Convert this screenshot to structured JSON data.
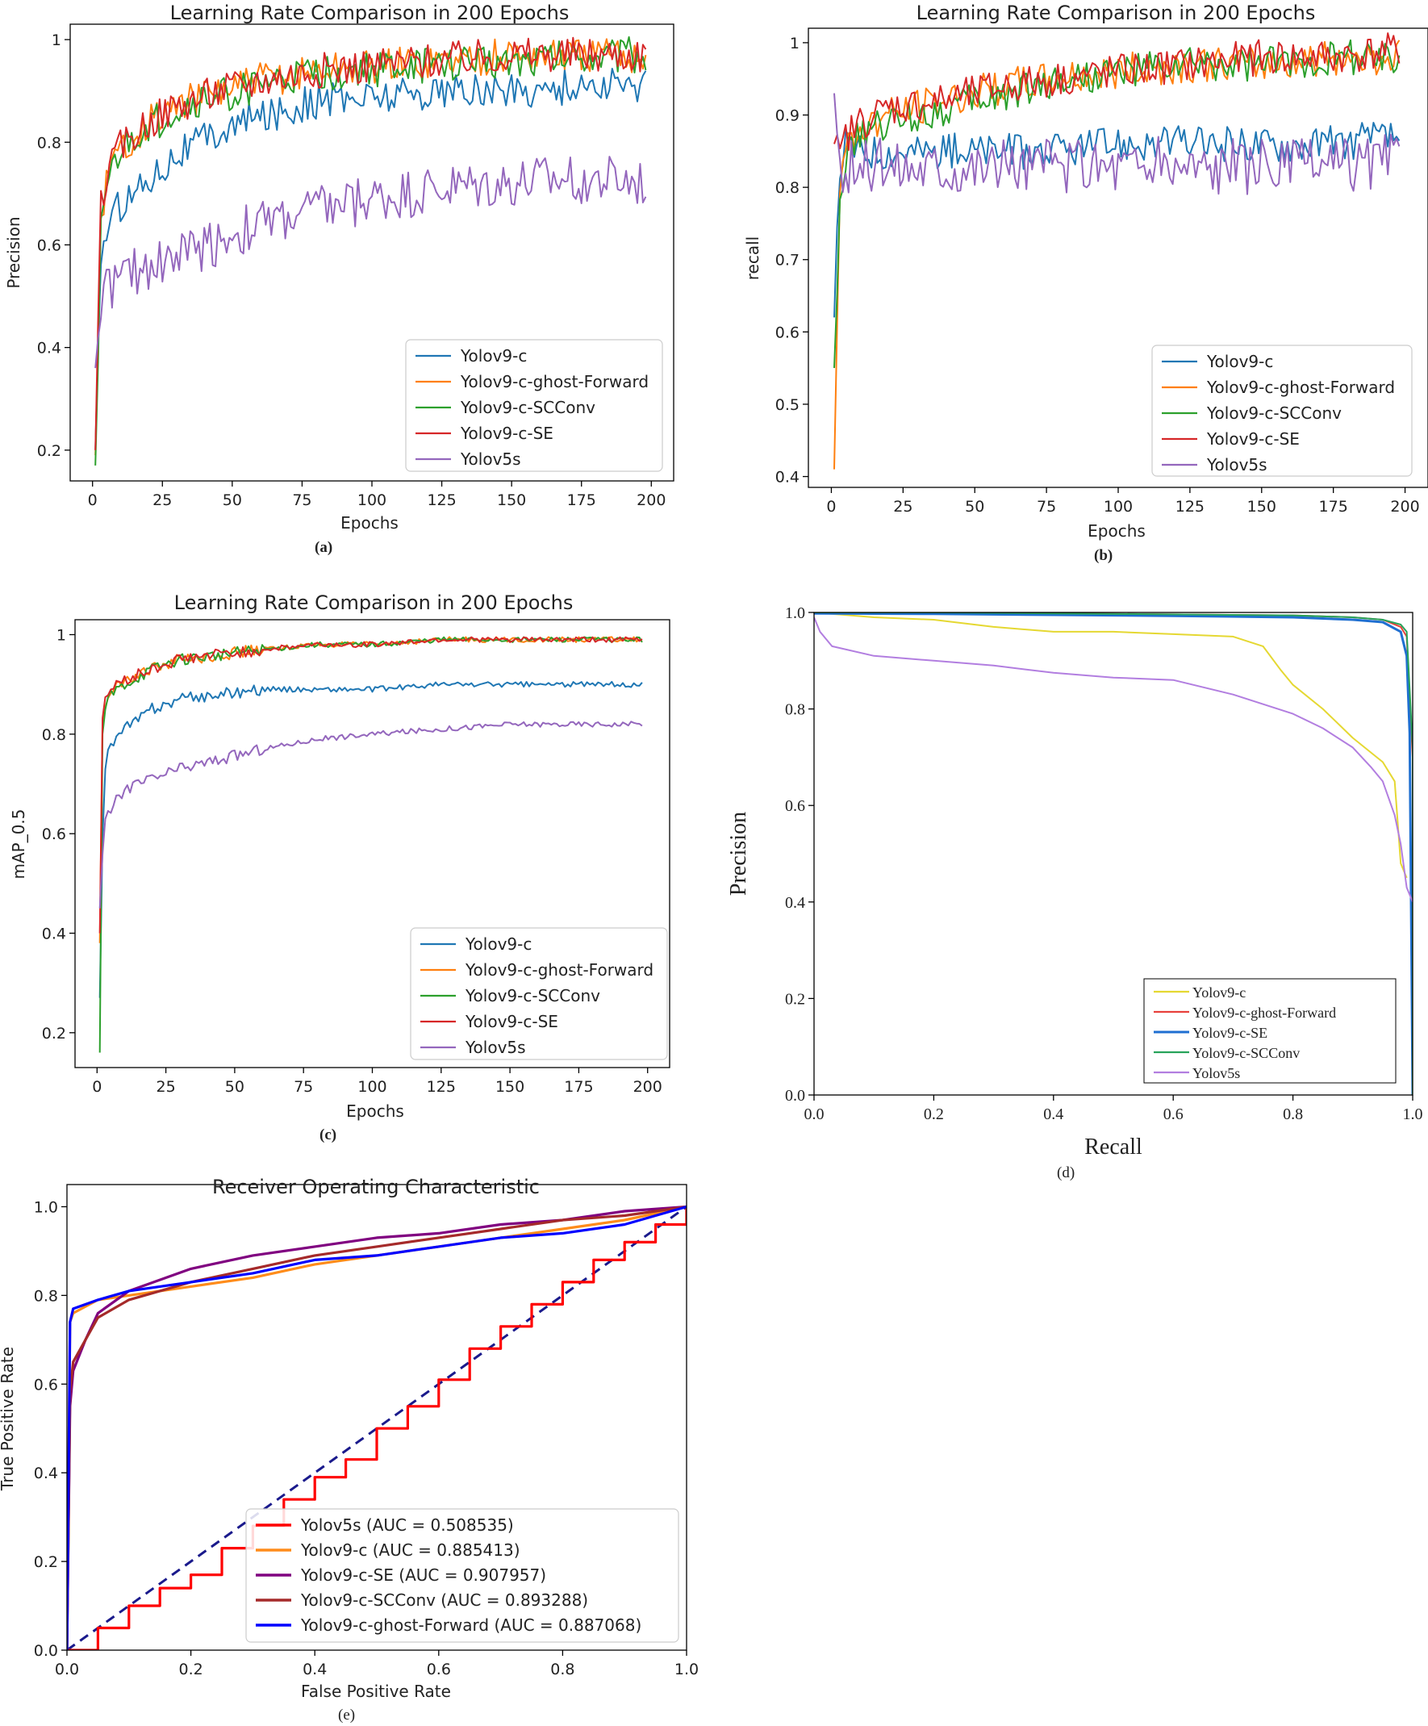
{
  "labels": {
    "a": "(a)",
    "b": "(b)",
    "c": "(c)",
    "d": "(d)",
    "e": "(e)"
  },
  "colors": {
    "yolov9c": "#1f77b4",
    "ghost": "#ff7f0e",
    "scconv": "#2ca02c",
    "se": "#d62728",
    "yolov5s": "#9467bd",
    "pr_yolov9c": "#e5d832",
    "pr_ghost": "#e8413c",
    "pr_se": "#1f6fd1",
    "pr_scconv": "#27a35a",
    "pr_yolov5s": "#b27ee0",
    "roc_yolov5s": "#ff0000",
    "roc_yolov9c": "#ff8c1a",
    "roc_se": "#800080",
    "roc_scconv": "#a52a2a",
    "roc_ghost": "#0000ff",
    "roc_diag": "#1a1a8c"
  },
  "chart_data": [
    {
      "id": "a",
      "type": "line",
      "title": "Learning Rate Comparison in 200 Epochs",
      "xlabel": "Epochs",
      "ylabel": "Precision",
      "xlim": [
        -8,
        208
      ],
      "ylim": [
        0.14,
        1.03
      ],
      "xticks": [
        0,
        25,
        50,
        75,
        100,
        125,
        150,
        175,
        200
      ],
      "yticks": [
        0.2,
        0.4,
        0.6,
        0.8,
        1.0
      ],
      "legend_position": "bottom-right",
      "series": [
        {
          "name": "Yolov9-c",
          "color_key": "yolov9c",
          "x": [
            1,
            3,
            5,
            10,
            20,
            30,
            45,
            60,
            80,
            100,
            125,
            150,
            175,
            198
          ],
          "y": [
            0.2,
            0.58,
            0.63,
            0.68,
            0.73,
            0.78,
            0.82,
            0.85,
            0.88,
            0.89,
            0.9,
            0.9,
            0.91,
            0.91
          ]
        },
        {
          "name": "Yolov9-c-ghost-Forward",
          "color_key": "ghost",
          "x": [
            1,
            3,
            5,
            10,
            20,
            30,
            45,
            60,
            80,
            100,
            125,
            150,
            175,
            198
          ],
          "y": [
            0.19,
            0.66,
            0.72,
            0.79,
            0.84,
            0.87,
            0.9,
            0.92,
            0.94,
            0.95,
            0.96,
            0.97,
            0.97,
            0.97
          ]
        },
        {
          "name": "Yolov9-c-SCConv",
          "color_key": "scconv",
          "x": [
            1,
            3,
            5,
            10,
            20,
            30,
            45,
            60,
            80,
            100,
            125,
            150,
            175,
            198
          ],
          "y": [
            0.17,
            0.64,
            0.71,
            0.78,
            0.83,
            0.86,
            0.89,
            0.91,
            0.93,
            0.94,
            0.95,
            0.96,
            0.97,
            0.97
          ]
        },
        {
          "name": "Yolov9-c-SE",
          "color_key": "se",
          "x": [
            1,
            3,
            5,
            10,
            20,
            30,
            45,
            60,
            80,
            100,
            125,
            150,
            175,
            198
          ],
          "y": [
            0.2,
            0.68,
            0.73,
            0.79,
            0.84,
            0.87,
            0.9,
            0.92,
            0.94,
            0.95,
            0.96,
            0.97,
            0.97,
            0.97
          ]
        },
        {
          "name": "Yolov5s",
          "color_key": "yolov5s",
          "x": [
            1,
            3,
            5,
            10,
            20,
            30,
            45,
            60,
            80,
            100,
            125,
            150,
            175,
            198
          ],
          "y": [
            0.36,
            0.5,
            0.52,
            0.53,
            0.56,
            0.58,
            0.61,
            0.64,
            0.67,
            0.69,
            0.71,
            0.72,
            0.73,
            0.72
          ]
        }
      ]
    },
    {
      "id": "b",
      "type": "line",
      "title": "Learning Rate Comparison in 200 Epochs",
      "xlabel": "Epochs",
      "ylabel": "recall",
      "xlim": [
        -8,
        208
      ],
      "ylim": [
        0.385,
        1.02
      ],
      "xticks": [
        0,
        25,
        50,
        75,
        100,
        125,
        150,
        175,
        200
      ],
      "yticks": [
        0.4,
        0.5,
        0.6,
        0.7,
        0.8,
        0.9,
        1.0
      ],
      "legend_position": "bottom-right",
      "series": [
        {
          "name": "Yolov9-c",
          "color_key": "yolov9c",
          "x": [
            1,
            3,
            5,
            10,
            20,
            40,
            60,
            80,
            100,
            125,
            150,
            175,
            198
          ],
          "y": [
            0.62,
            0.83,
            0.86,
            0.85,
            0.85,
            0.85,
            0.85,
            0.85,
            0.86,
            0.86,
            0.86,
            0.86,
            0.87
          ]
        },
        {
          "name": "Yolov9-c-ghost-Forward",
          "color_key": "ghost",
          "x": [
            1,
            3,
            5,
            10,
            20,
            40,
            60,
            80,
            100,
            125,
            150,
            175,
            198
          ],
          "y": [
            0.41,
            0.8,
            0.85,
            0.88,
            0.9,
            0.92,
            0.94,
            0.95,
            0.96,
            0.97,
            0.97,
            0.98,
            0.98
          ]
        },
        {
          "name": "Yolov9-c-SCConv",
          "color_key": "scconv",
          "x": [
            1,
            3,
            5,
            10,
            20,
            40,
            60,
            80,
            100,
            125,
            150,
            175,
            198
          ],
          "y": [
            0.55,
            0.78,
            0.84,
            0.87,
            0.89,
            0.91,
            0.93,
            0.95,
            0.96,
            0.97,
            0.97,
            0.98,
            0.98
          ]
        },
        {
          "name": "Yolov9-c-SE",
          "color_key": "se",
          "x": [
            1,
            3,
            5,
            10,
            20,
            40,
            60,
            80,
            100,
            125,
            150,
            175,
            198
          ],
          "y": [
            0.86,
            0.84,
            0.87,
            0.89,
            0.91,
            0.92,
            0.94,
            0.95,
            0.96,
            0.97,
            0.98,
            0.98,
            0.99
          ]
        },
        {
          "name": "Yolov5s",
          "color_key": "yolov5s",
          "x": [
            1,
            3,
            5,
            10,
            20,
            40,
            60,
            80,
            100,
            125,
            150,
            175,
            198
          ],
          "y": [
            0.93,
            0.8,
            0.82,
            0.83,
            0.83,
            0.83,
            0.83,
            0.83,
            0.83,
            0.83,
            0.83,
            0.83,
            0.84
          ]
        }
      ]
    },
    {
      "id": "c",
      "type": "line",
      "title": "Learning Rate Comparison in 200 Epochs",
      "xlabel": "Epochs",
      "ylabel": "mAP_0.5",
      "xlim": [
        -8,
        208
      ],
      "ylim": [
        0.13,
        1.03
      ],
      "xticks": [
        0,
        25,
        50,
        75,
        100,
        125,
        150,
        175,
        200
      ],
      "yticks": [
        0.2,
        0.4,
        0.6,
        0.8,
        1.0
      ],
      "legend_position": "bottom-right",
      "series": [
        {
          "name": "Yolov9-c",
          "color_key": "yolov9c",
          "x": [
            1,
            2,
            3,
            5,
            10,
            20,
            30,
            45,
            60,
            80,
            100,
            125,
            150,
            175,
            198
          ],
          "y": [
            0.27,
            0.6,
            0.74,
            0.78,
            0.81,
            0.85,
            0.87,
            0.88,
            0.89,
            0.89,
            0.89,
            0.9,
            0.9,
            0.9,
            0.9
          ]
        },
        {
          "name": "Yolov9-c-ghost-Forward",
          "color_key": "ghost",
          "x": [
            1,
            2,
            3,
            5,
            10,
            20,
            30,
            45,
            60,
            80,
            100,
            125,
            150,
            175,
            198
          ],
          "y": [
            0.38,
            0.82,
            0.86,
            0.89,
            0.91,
            0.93,
            0.95,
            0.96,
            0.97,
            0.98,
            0.98,
            0.99,
            0.99,
            0.99,
            0.99
          ]
        },
        {
          "name": "Yolov9-c-SCConv",
          "color_key": "scconv",
          "x": [
            1,
            2,
            3,
            5,
            10,
            20,
            30,
            45,
            60,
            80,
            100,
            125,
            150,
            175,
            198
          ],
          "y": [
            0.16,
            0.8,
            0.85,
            0.88,
            0.9,
            0.93,
            0.95,
            0.96,
            0.97,
            0.98,
            0.98,
            0.99,
            0.99,
            0.99,
            0.99
          ]
        },
        {
          "name": "Yolov9-c-SE",
          "color_key": "se",
          "x": [
            1,
            2,
            3,
            5,
            10,
            20,
            30,
            45,
            60,
            80,
            100,
            125,
            150,
            175,
            198
          ],
          "y": [
            0.4,
            0.84,
            0.87,
            0.89,
            0.91,
            0.93,
            0.95,
            0.96,
            0.97,
            0.98,
            0.98,
            0.99,
            0.99,
            0.99,
            0.99
          ]
        },
        {
          "name": "Yolov5s",
          "color_key": "yolov5s",
          "x": [
            1,
            2,
            3,
            5,
            10,
            20,
            30,
            45,
            60,
            80,
            100,
            125,
            150,
            175,
            198
          ],
          "y": [
            0.45,
            0.55,
            0.62,
            0.65,
            0.69,
            0.71,
            0.73,
            0.75,
            0.77,
            0.79,
            0.8,
            0.81,
            0.82,
            0.82,
            0.82
          ]
        }
      ]
    },
    {
      "id": "d",
      "type": "line",
      "title": "",
      "xlabel": "Recall",
      "ylabel": "Precision",
      "xlim": [
        0,
        1
      ],
      "ylim": [
        0,
        1
      ],
      "xticks": [
        0.0,
        0.2,
        0.4,
        0.6,
        0.8,
        1.0
      ],
      "yticks": [
        0.0,
        0.2,
        0.4,
        0.6,
        0.8,
        1.0
      ],
      "tick_format": "%.1f",
      "legend_position": "bottom-right",
      "series": [
        {
          "name": "Yolov9-c",
          "color_key": "pr_yolov9c",
          "x": [
            0.0,
            0.1,
            0.2,
            0.3,
            0.4,
            0.5,
            0.6,
            0.7,
            0.75,
            0.78,
            0.8,
            0.85,
            0.9,
            0.95,
            0.97,
            0.98,
            0.99
          ],
          "y": [
            1.0,
            0.99,
            0.985,
            0.97,
            0.96,
            0.96,
            0.955,
            0.95,
            0.93,
            0.88,
            0.85,
            0.8,
            0.74,
            0.69,
            0.65,
            0.48,
            0.45
          ]
        },
        {
          "name": "Yolov9-c-ghost-Forward",
          "color_key": "pr_ghost",
          "x": [
            0.0,
            0.2,
            0.4,
            0.6,
            0.8,
            0.9,
            0.95,
            0.98,
            0.99,
            1.0,
            1.0
          ],
          "y": [
            1.0,
            1.0,
            0.998,
            0.996,
            0.994,
            0.99,
            0.985,
            0.97,
            0.95,
            0.7,
            0.0
          ]
        },
        {
          "name": "Yolov9-c-SE",
          "color_key": "pr_se",
          "x": [
            0.0,
            0.2,
            0.4,
            0.6,
            0.8,
            0.9,
            0.95,
            0.98,
            0.99,
            0.995,
            1.0
          ],
          "y": [
            0.998,
            0.997,
            0.995,
            0.993,
            0.99,
            0.985,
            0.98,
            0.96,
            0.91,
            0.75,
            0.0
          ]
        },
        {
          "name": "Yolov9-c-SCConv",
          "color_key": "pr_scconv",
          "x": [
            0.0,
            0.2,
            0.4,
            0.6,
            0.8,
            0.9,
            0.95,
            0.98,
            0.99,
            1.0,
            1.0
          ],
          "y": [
            1.0,
            1.0,
            0.998,
            0.996,
            0.994,
            0.99,
            0.985,
            0.975,
            0.96,
            0.72,
            0.0
          ]
        },
        {
          "name": "Yolov5s",
          "color_key": "pr_yolov5s",
          "x": [
            0.0,
            0.01,
            0.03,
            0.1,
            0.2,
            0.3,
            0.4,
            0.5,
            0.6,
            0.7,
            0.8,
            0.85,
            0.9,
            0.93,
            0.95,
            0.97,
            0.98,
            0.99,
            1.0
          ],
          "y": [
            0.99,
            0.96,
            0.93,
            0.91,
            0.9,
            0.89,
            0.875,
            0.865,
            0.86,
            0.83,
            0.79,
            0.76,
            0.72,
            0.68,
            0.65,
            0.58,
            0.52,
            0.43,
            0.4
          ]
        }
      ]
    },
    {
      "id": "e",
      "type": "line",
      "title": "Receiver Operating Characteristic",
      "xlabel": "False Positive Rate",
      "ylabel": "True Positive Rate",
      "xlim": [
        0,
        1
      ],
      "ylim": [
        0,
        1.05
      ],
      "xticks": [
        0.0,
        0.2,
        0.4,
        0.6,
        0.8,
        1.0
      ],
      "yticks": [
        0.0,
        0.2,
        0.4,
        0.6,
        0.8,
        1.0
      ],
      "tick_format": "%.1f",
      "legend_position": "bottom-right",
      "series": [
        {
          "name": "Yolov5s (AUC = 0.508535)",
          "color_key": "roc_yolov5s",
          "x": [
            0,
            0.05,
            0.1,
            0.15,
            0.2,
            0.25,
            0.3,
            0.35,
            0.4,
            0.45,
            0.5,
            0.55,
            0.6,
            0.65,
            0.7,
            0.75,
            0.8,
            0.85,
            0.9,
            0.95,
            1.0
          ],
          "y": [
            0,
            0.05,
            0.1,
            0.14,
            0.17,
            0.23,
            0.28,
            0.34,
            0.39,
            0.43,
            0.5,
            0.55,
            0.61,
            0.68,
            0.73,
            0.78,
            0.83,
            0.88,
            0.92,
            0.96,
            1.0
          ]
        },
        {
          "name": "Yolov9-c (AUC = 0.885413)",
          "color_key": "roc_yolov9c",
          "x": [
            0,
            0.005,
            0.01,
            0.05,
            0.1,
            0.2,
            0.3,
            0.4,
            0.5,
            0.6,
            0.7,
            0.8,
            0.9,
            1.0
          ],
          "y": [
            0,
            0.74,
            0.76,
            0.79,
            0.8,
            0.82,
            0.84,
            0.87,
            0.89,
            0.91,
            0.93,
            0.95,
            0.97,
            1.0
          ]
        },
        {
          "name": "Yolov9-c-SE (AUC = 0.907957)",
          "color_key": "roc_se",
          "x": [
            0,
            0.005,
            0.01,
            0.03,
            0.05,
            0.1,
            0.2,
            0.3,
            0.4,
            0.5,
            0.6,
            0.7,
            0.8,
            0.9,
            1.0
          ],
          "y": [
            0,
            0.55,
            0.63,
            0.7,
            0.76,
            0.81,
            0.86,
            0.89,
            0.91,
            0.93,
            0.94,
            0.96,
            0.97,
            0.99,
            1.0
          ]
        },
        {
          "name": "Yolov9-c-SCConv (AUC = 0.893288)",
          "color_key": "roc_scconv",
          "x": [
            0,
            0.005,
            0.01,
            0.03,
            0.05,
            0.1,
            0.2,
            0.3,
            0.4,
            0.5,
            0.6,
            0.7,
            0.8,
            0.9,
            1.0
          ],
          "y": [
            0,
            0.58,
            0.65,
            0.7,
            0.75,
            0.79,
            0.83,
            0.86,
            0.89,
            0.91,
            0.93,
            0.95,
            0.97,
            0.98,
            1.0
          ]
        },
        {
          "name": "Yolov9-c-ghost-Forward (AUC = 0.887068)",
          "color_key": "roc_ghost",
          "x": [
            0,
            0.005,
            0.01,
            0.05,
            0.1,
            0.2,
            0.3,
            0.4,
            0.5,
            0.6,
            0.7,
            0.8,
            0.9,
            1.0
          ],
          "y": [
            0,
            0.74,
            0.77,
            0.79,
            0.81,
            0.83,
            0.85,
            0.88,
            0.89,
            0.91,
            0.93,
            0.94,
            0.96,
            1.0
          ]
        }
      ],
      "reference_line": {
        "x": [
          0,
          1
        ],
        "y": [
          0,
          1
        ],
        "style": "dashed",
        "color_key": "roc_diag"
      }
    }
  ]
}
